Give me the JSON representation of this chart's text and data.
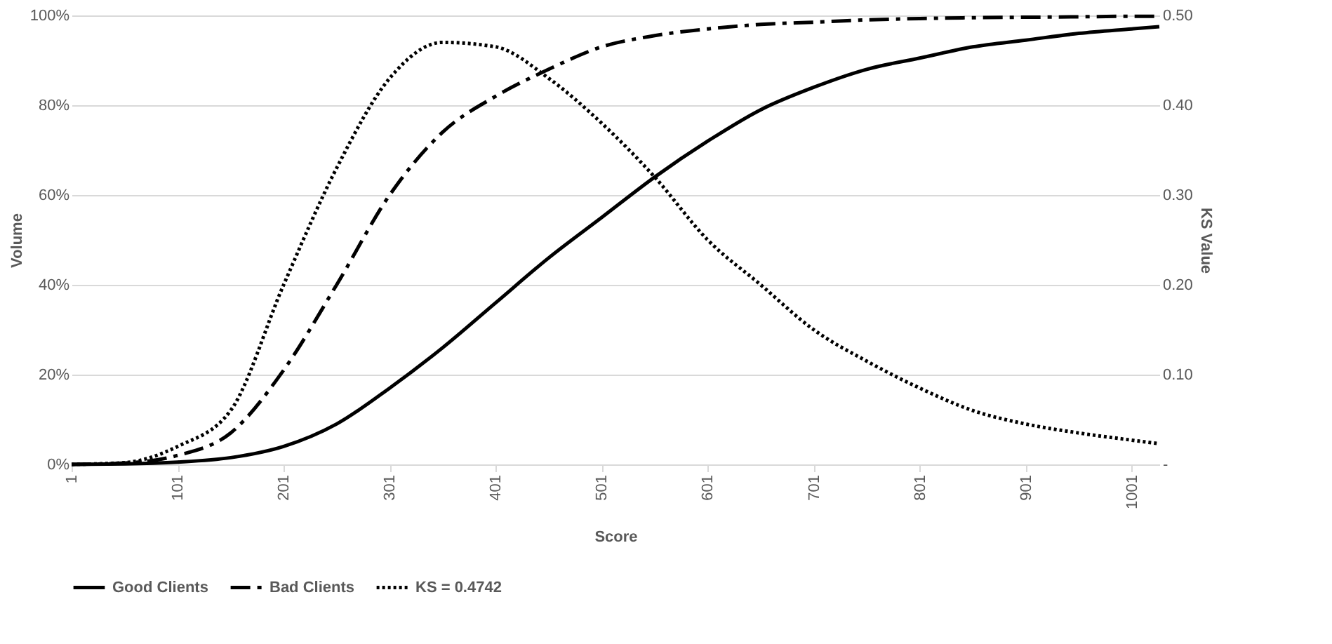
{
  "chart_data": {
    "type": "line",
    "xlabel": "Score",
    "ylabel": "Volume",
    "y2label": "KS Value",
    "xlim": [
      1,
      1027
    ],
    "xticks": [
      1,
      101,
      201,
      301,
      401,
      501,
      601,
      701,
      801,
      901,
      1001
    ],
    "ylim": [
      0,
      100
    ],
    "yticks": [
      {
        "value": 0,
        "label": "0%"
      },
      {
        "value": 20,
        "label": "20%"
      },
      {
        "value": 40,
        "label": "40%"
      },
      {
        "value": 60,
        "label": "60%"
      },
      {
        "value": 80,
        "label": "80%"
      },
      {
        "value": 100,
        "label": "100%"
      }
    ],
    "y2lim": [
      0,
      0.5
    ],
    "y2ticks": [
      {
        "value": 0,
        "label": "-"
      },
      {
        "value": 0.1,
        "label": "0.10"
      },
      {
        "value": 0.2,
        "label": "0.20"
      },
      {
        "value": 0.3,
        "label": "0.30"
      },
      {
        "value": 0.4,
        "label": "0.40"
      },
      {
        "value": 0.5,
        "label": "0.50"
      }
    ],
    "grid": "y",
    "legend": "bottom",
    "marker": "none",
    "x": [
      1,
      51,
      101,
      151,
      201,
      251,
      301,
      351,
      401,
      451,
      501,
      551,
      601,
      651,
      701,
      751,
      801,
      851,
      901,
      951,
      1001,
      1027
    ],
    "series": [
      {
        "name": "Good Clients",
        "color": "#000000",
        "line_style": "solid",
        "values": [
          0,
          0.1,
          0.5,
          1.5,
          4,
          9,
          17,
          26,
          36,
          46,
          55,
          64,
          72,
          79,
          84,
          88,
          90.5,
          93,
          94.5,
          96,
          97,
          97.5
        ]
      },
      {
        "name": "Bad Clients",
        "color": "#000000",
        "line_style": "dashed",
        "values": [
          0,
          0.3,
          2,
          7,
          21,
          40,
          60,
          74,
          82,
          88,
          93,
          95.5,
          97,
          98,
          98.5,
          99,
          99.3,
          99.5,
          99.6,
          99.7,
          99.8,
          99.8
        ]
      },
      {
        "name": "KS = 0.4742",
        "color": "#000000",
        "line_style": "dotted",
        "axis": "y2",
        "values": [
          0,
          0.002,
          0.02,
          0.06,
          0.2,
          0.33,
          0.43,
          0.47,
          0.465,
          0.43,
          0.38,
          0.32,
          0.25,
          0.2,
          0.15,
          0.115,
          0.085,
          0.06,
          0.045,
          0.035,
          0.027,
          0.023
        ]
      }
    ]
  }
}
